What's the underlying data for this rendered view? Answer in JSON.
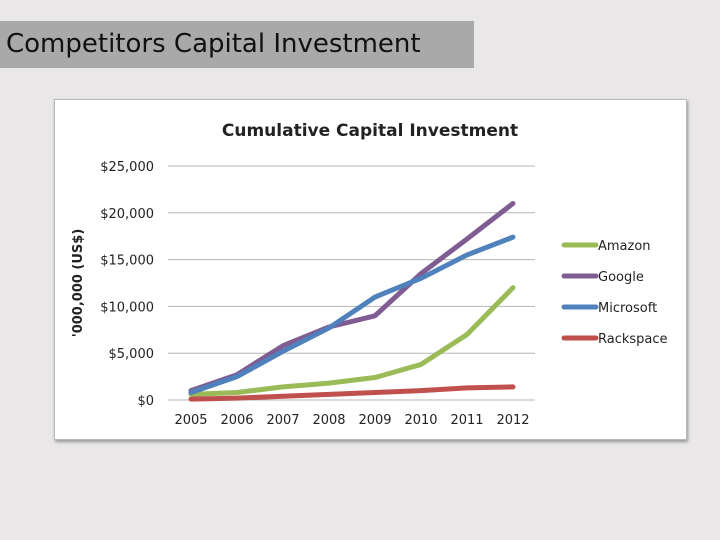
{
  "slide": {
    "title": "Competitors Capital Investment"
  },
  "chart_data": {
    "type": "line",
    "title": "Cumulative Capital Investment",
    "ylabel": "'000,000 (US$)",
    "xlabel": "",
    "categories": [
      "2005",
      "2006",
      "2007",
      "2008",
      "2009",
      "2010",
      "2011",
      "2012"
    ],
    "ylim": [
      0,
      25000
    ],
    "y_ticks": [
      0,
      5000,
      10000,
      15000,
      20000,
      25000
    ],
    "y_tick_labels": [
      "$0",
      "$5,000",
      "$10,000",
      "$15,000",
      "$20,000",
      "$25,000"
    ],
    "grid": true,
    "legend_position": "right",
    "series": [
      {
        "name": "Amazon",
        "color": "#9bbb59",
        "values": [
          600,
          800,
          1400,
          1800,
          2400,
          3800,
          7000,
          12000
        ]
      },
      {
        "name": "Google",
        "color": "#7f5d93",
        "values": [
          1000,
          2700,
          5800,
          7800,
          9000,
          13500,
          17200,
          21000
        ]
      },
      {
        "name": "Microsoft",
        "color": "#4f81bd",
        "values": [
          800,
          2500,
          5200,
          7700,
          11000,
          13000,
          15500,
          17400
        ]
      },
      {
        "name": "Rackspace",
        "color": "#c0504d",
        "values": [
          100,
          200,
          400,
          600,
          800,
          1000,
          1300,
          1400
        ]
      }
    ]
  }
}
